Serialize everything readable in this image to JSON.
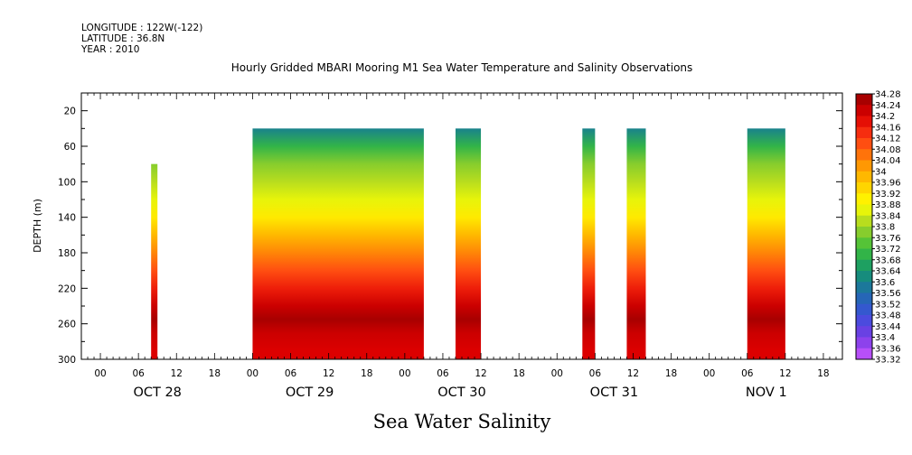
{
  "header": {
    "longitude": "LONGITUDE : 122W(-122)",
    "latitude": "LATITUDE : 36.8N",
    "year": "YEAR : 2010"
  },
  "chart_data": {
    "type": "heatmap",
    "title": "Hourly Gridded MBARI Mooring M1 Sea Water Temperature and Salinity Observations",
    "xlabel": "Sea Water Salinity",
    "ylabel": "DEPTH (m)",
    "x_units": "hours since Oct 28 00:00, 2010",
    "xlim": [
      -3,
      117
    ],
    "ylim": [
      300,
      0
    ],
    "y_ticks": [
      20,
      60,
      100,
      140,
      180,
      220,
      260,
      300
    ],
    "x_hour_ticks": [
      {
        "h": 0,
        "label": "00"
      },
      {
        "h": 6,
        "label": "06"
      },
      {
        "h": 12,
        "label": "12"
      },
      {
        "h": 18,
        "label": "18"
      },
      {
        "h": 24,
        "label": "00"
      },
      {
        "h": 30,
        "label": "06"
      },
      {
        "h": 36,
        "label": "12"
      },
      {
        "h": 42,
        "label": "18"
      },
      {
        "h": 48,
        "label": "00"
      },
      {
        "h": 54,
        "label": "06"
      },
      {
        "h": 60,
        "label": "12"
      },
      {
        "h": 66,
        "label": "18"
      },
      {
        "h": 72,
        "label": "00"
      },
      {
        "h": 78,
        "label": "06"
      },
      {
        "h": 84,
        "label": "12"
      },
      {
        "h": 90,
        "label": "18"
      },
      {
        "h": 96,
        "label": "00"
      },
      {
        "h": 102,
        "label": "06"
      },
      {
        "h": 108,
        "label": "12"
      },
      {
        "h": 114,
        "label": "18"
      }
    ],
    "x_day_labels": [
      {
        "h": 9,
        "label": "OCT 28"
      },
      {
        "h": 33,
        "label": "OCT 29"
      },
      {
        "h": 57,
        "label": "OCT 30"
      },
      {
        "h": 81,
        "label": "OCT 31"
      },
      {
        "h": 105,
        "label": "NOV  1"
      }
    ],
    "segments": [
      {
        "start": 8,
        "end": 9,
        "top_depth": 80
      },
      {
        "start": 24,
        "end": 51,
        "top_depth": 40
      },
      {
        "start": 56,
        "end": 60,
        "top_depth": 40
      },
      {
        "start": 76,
        "end": 78,
        "top_depth": 40
      },
      {
        "start": 83,
        "end": 86,
        "top_depth": 40
      },
      {
        "start": 102,
        "end": 108,
        "top_depth": 40
      }
    ],
    "profile_depths": [
      40,
      60,
      80,
      100,
      120,
      140,
      160,
      180,
      200,
      220,
      240,
      255,
      270,
      290,
      300
    ],
    "profile_values": [
      33.6,
      33.7,
      33.78,
      33.82,
      33.86,
      33.91,
      33.98,
      34.04,
      34.1,
      34.16,
      34.22,
      34.26,
      34.22,
      34.2,
      34.2
    ],
    "colorbar": {
      "min": 33.32,
      "max": 34.28,
      "step": 0.04,
      "labels": [
        "34.28",
        "34.24",
        "34.2",
        "34.16",
        "34.12",
        "34.08",
        "34.04",
        "34",
        "33.96",
        "33.92",
        "33.88",
        "33.84",
        "33.8",
        "33.76",
        "33.72",
        "33.68",
        "33.64",
        "33.6",
        "33.56",
        "33.52",
        "33.48",
        "33.44",
        "33.4",
        "33.36",
        "33.32"
      ]
    }
  }
}
